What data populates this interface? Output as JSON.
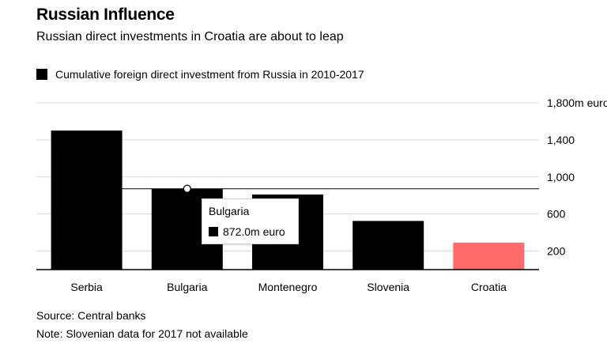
{
  "chart_data": {
    "type": "bar",
    "title": "Russian Influence",
    "subtitle": "Russian direct investments in Croatia are about to leap",
    "legend": "Cumulative foreign direct investment from Russia in 2010-2017",
    "categories": [
      "Serbia",
      "Bulgaria",
      "Montenegro",
      "Slovenia",
      "Croatia"
    ],
    "values": [
      1500,
      872,
      810,
      525,
      290
    ],
    "bar_colors": [
      "#000000",
      "#000000",
      "#000000",
      "#000000",
      "#ff6b6b"
    ],
    "ylim": [
      0,
      1800
    ],
    "yticks": [
      200,
      600,
      1000,
      1400,
      1800
    ],
    "ytick_labels": [
      "200",
      "600",
      "1,000",
      "1,400",
      "1,800m euro"
    ],
    "reference_line": 872,
    "tooltip": {
      "category": "Bulgaria",
      "value_label": "872.0m euro"
    },
    "xlabel": "",
    "ylabel": "",
    "grid": true
  },
  "footer": {
    "source": "Source: Central banks",
    "note": "Note: Slovenian data for 2017 not available"
  }
}
